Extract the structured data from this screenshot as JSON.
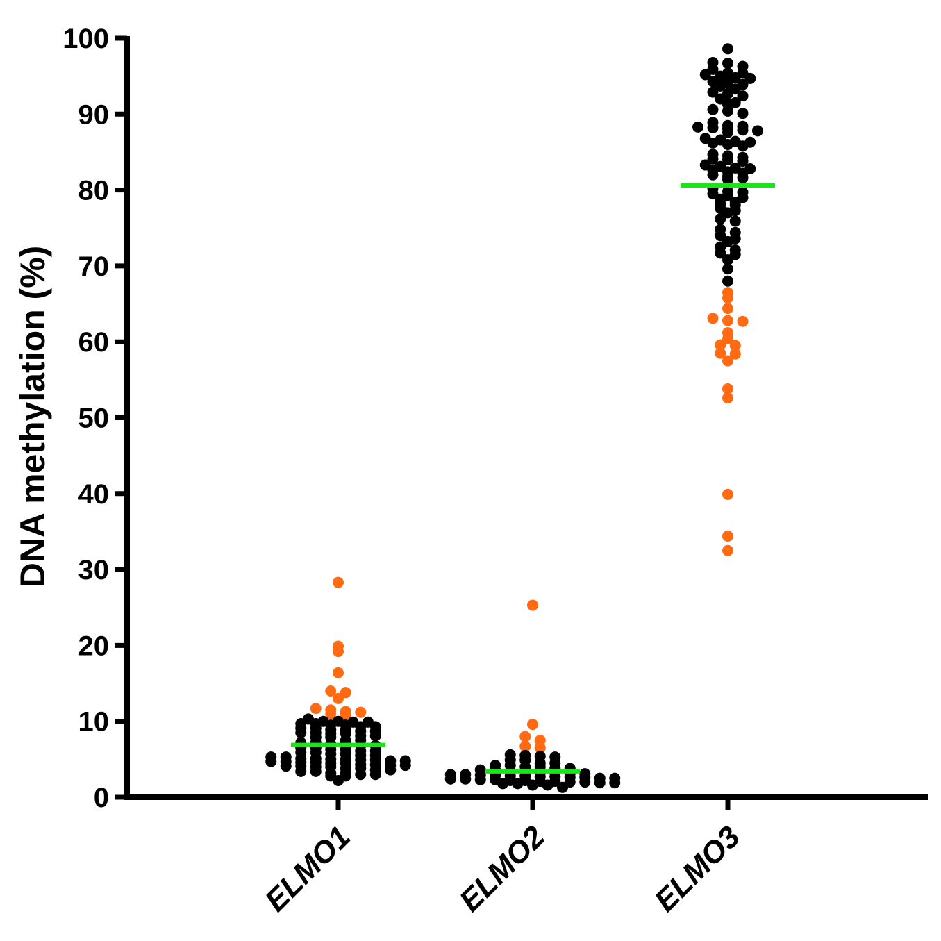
{
  "chart_data": {
    "type": "scatter",
    "title": "",
    "xlabel": "",
    "ylabel": "DNA methylation (%)",
    "ylim": [
      0,
      100
    ],
    "yticks": [
      0,
      10,
      20,
      30,
      40,
      50,
      60,
      70,
      80,
      90,
      100
    ],
    "categories": [
      "ELMO1",
      "ELMO2",
      "ELMO3"
    ],
    "colors": {
      "black": "#000000",
      "orange": "#ff6a13",
      "median": "#19e619"
    },
    "series": [
      {
        "name": "ELMO1",
        "median": 6.9,
        "points": [
          {
            "y": 28.3,
            "c": "orange"
          },
          {
            "y": 19.9,
            "c": "orange"
          },
          {
            "y": 19.2,
            "c": "orange"
          },
          {
            "y": 16.4,
            "c": "orange"
          },
          {
            "y": 14.0,
            "c": "orange"
          },
          {
            "y": 13.8,
            "c": "orange"
          },
          {
            "y": 13.0,
            "c": "orange"
          },
          {
            "y": 11.7,
            "c": "orange"
          },
          {
            "y": 11.5,
            "c": "orange"
          },
          {
            "y": 11.3,
            "c": "orange"
          },
          {
            "y": 11.2,
            "c": "orange"
          },
          {
            "y": 11.0,
            "c": "orange"
          },
          {
            "y": 10.9,
            "c": "orange"
          },
          {
            "y": 10.3,
            "c": "black"
          },
          {
            "y": 10.0,
            "c": "black"
          },
          {
            "y": 10.0,
            "c": "black"
          },
          {
            "y": 9.9,
            "c": "black"
          },
          {
            "y": 9.9,
            "c": "black"
          },
          {
            "y": 9.7,
            "c": "black"
          },
          {
            "y": 9.7,
            "c": "black"
          },
          {
            "y": 9.5,
            "c": "black"
          },
          {
            "y": 9.5,
            "c": "black"
          },
          {
            "y": 9.3,
            "c": "black"
          },
          {
            "y": 9.3,
            "c": "black"
          },
          {
            "y": 9.1,
            "c": "black"
          },
          {
            "y": 9.1,
            "c": "black"
          },
          {
            "y": 8.9,
            "c": "black"
          },
          {
            "y": 8.9,
            "c": "black"
          },
          {
            "y": 8.7,
            "c": "black"
          },
          {
            "y": 8.7,
            "c": "black"
          },
          {
            "y": 8.5,
            "c": "black"
          },
          {
            "y": 8.5,
            "c": "black"
          },
          {
            "y": 8.4,
            "c": "black"
          },
          {
            "y": 8.4,
            "c": "black"
          },
          {
            "y": 8.1,
            "c": "black"
          },
          {
            "y": 8.1,
            "c": "black"
          },
          {
            "y": 7.9,
            "c": "black"
          },
          {
            "y": 7.9,
            "c": "black"
          },
          {
            "y": 7.5,
            "c": "black"
          },
          {
            "y": 7.5,
            "c": "black"
          },
          {
            "y": 7.2,
            "c": "black"
          },
          {
            "y": 7.2,
            "c": "black"
          },
          {
            "y": 7.0,
            "c": "black"
          },
          {
            "y": 7.0,
            "c": "black"
          },
          {
            "y": 6.8,
            "c": "black"
          },
          {
            "y": 6.8,
            "c": "black"
          },
          {
            "y": 6.5,
            "c": "black"
          },
          {
            "y": 6.5,
            "c": "black"
          },
          {
            "y": 6.3,
            "c": "black"
          },
          {
            "y": 6.3,
            "c": "black"
          },
          {
            "y": 6.1,
            "c": "black"
          },
          {
            "y": 6.1,
            "c": "black"
          },
          {
            "y": 5.9,
            "c": "black"
          },
          {
            "y": 5.9,
            "c": "black"
          },
          {
            "y": 5.7,
            "c": "black"
          },
          {
            "y": 5.7,
            "c": "black"
          },
          {
            "y": 5.5,
            "c": "black"
          },
          {
            "y": 5.5,
            "c": "black"
          },
          {
            "y": 5.3,
            "c": "black"
          },
          {
            "y": 5.3,
            "c": "black"
          },
          {
            "y": 5.1,
            "c": "black"
          },
          {
            "y": 5.1,
            "c": "black"
          },
          {
            "y": 5.0,
            "c": "black"
          },
          {
            "y": 5.0,
            "c": "black"
          },
          {
            "y": 4.9,
            "c": "black"
          },
          {
            "y": 4.9,
            "c": "black"
          },
          {
            "y": 4.8,
            "c": "black"
          },
          {
            "y": 4.8,
            "c": "black"
          },
          {
            "y": 4.7,
            "c": "black"
          },
          {
            "y": 4.7,
            "c": "black"
          },
          {
            "y": 4.6,
            "c": "black"
          },
          {
            "y": 4.6,
            "c": "black"
          },
          {
            "y": 4.5,
            "c": "black"
          },
          {
            "y": 4.5,
            "c": "black"
          },
          {
            "y": 4.3,
            "c": "black"
          },
          {
            "y": 4.3,
            "c": "black"
          },
          {
            "y": 4.2,
            "c": "black"
          },
          {
            "y": 4.2,
            "c": "black"
          },
          {
            "y": 4.1,
            "c": "black"
          },
          {
            "y": 4.1,
            "c": "black"
          },
          {
            "y": 4.0,
            "c": "black"
          },
          {
            "y": 4.0,
            "c": "black"
          },
          {
            "y": 3.8,
            "c": "black"
          },
          {
            "y": 3.8,
            "c": "black"
          },
          {
            "y": 3.6,
            "c": "black"
          },
          {
            "y": 3.6,
            "c": "black"
          },
          {
            "y": 3.4,
            "c": "black"
          },
          {
            "y": 3.4,
            "c": "black"
          },
          {
            "y": 3.2,
            "c": "black"
          },
          {
            "y": 3.2,
            "c": "black"
          },
          {
            "y": 3.0,
            "c": "black"
          },
          {
            "y": 3.0,
            "c": "black"
          },
          {
            "y": 2.8,
            "c": "black"
          },
          {
            "y": 2.8,
            "c": "black"
          },
          {
            "y": 2.2,
            "c": "black"
          }
        ]
      },
      {
        "name": "ELMO2",
        "median": 3.4,
        "points": [
          {
            "y": 25.3,
            "c": "orange"
          },
          {
            "y": 9.6,
            "c": "orange"
          },
          {
            "y": 8.0,
            "c": "orange"
          },
          {
            "y": 7.5,
            "c": "orange"
          },
          {
            "y": 6.7,
            "c": "orange"
          },
          {
            "y": 6.5,
            "c": "orange"
          },
          {
            "y": 5.6,
            "c": "black"
          },
          {
            "y": 5.5,
            "c": "black"
          },
          {
            "y": 5.4,
            "c": "black"
          },
          {
            "y": 5.3,
            "c": "black"
          },
          {
            "y": 4.9,
            "c": "black"
          },
          {
            "y": 4.9,
            "c": "black"
          },
          {
            "y": 4.5,
            "c": "black"
          },
          {
            "y": 4.5,
            "c": "black"
          },
          {
            "y": 4.2,
            "c": "black"
          },
          {
            "y": 4.2,
            "c": "black"
          },
          {
            "y": 4.0,
            "c": "black"
          },
          {
            "y": 4.0,
            "c": "black"
          },
          {
            "y": 3.8,
            "c": "black"
          },
          {
            "y": 3.8,
            "c": "black"
          },
          {
            "y": 3.6,
            "c": "black"
          },
          {
            "y": 3.6,
            "c": "black"
          },
          {
            "y": 3.4,
            "c": "black"
          },
          {
            "y": 3.4,
            "c": "black"
          },
          {
            "y": 3.2,
            "c": "black"
          },
          {
            "y": 3.2,
            "c": "black"
          },
          {
            "y": 3.1,
            "c": "black"
          },
          {
            "y": 3.1,
            "c": "black"
          },
          {
            "y": 3.0,
            "c": "black"
          },
          {
            "y": 3.0,
            "c": "black"
          },
          {
            "y": 2.9,
            "c": "black"
          },
          {
            "y": 2.9,
            "c": "black"
          },
          {
            "y": 2.8,
            "c": "black"
          },
          {
            "y": 2.8,
            "c": "black"
          },
          {
            "y": 2.7,
            "c": "black"
          },
          {
            "y": 2.7,
            "c": "black"
          },
          {
            "y": 2.6,
            "c": "black"
          },
          {
            "y": 2.6,
            "c": "black"
          },
          {
            "y": 2.5,
            "c": "black"
          },
          {
            "y": 2.5,
            "c": "black"
          },
          {
            "y": 2.4,
            "c": "black"
          },
          {
            "y": 2.4,
            "c": "black"
          },
          {
            "y": 2.3,
            "c": "black"
          },
          {
            "y": 2.3,
            "c": "black"
          },
          {
            "y": 2.2,
            "c": "black"
          },
          {
            "y": 2.2,
            "c": "black"
          },
          {
            "y": 2.1,
            "c": "black"
          },
          {
            "y": 2.1,
            "c": "black"
          },
          {
            "y": 2.0,
            "c": "black"
          },
          {
            "y": 2.0,
            "c": "black"
          },
          {
            "y": 1.9,
            "c": "black"
          },
          {
            "y": 1.9,
            "c": "black"
          },
          {
            "y": 1.8,
            "c": "black"
          },
          {
            "y": 1.8,
            "c": "black"
          },
          {
            "y": 1.6,
            "c": "black"
          },
          {
            "y": 1.6,
            "c": "black"
          },
          {
            "y": 1.3,
            "c": "black"
          }
        ]
      },
      {
        "name": "ELMO3",
        "median": 80.6,
        "points": [
          {
            "y": 98.6,
            "c": "black"
          },
          {
            "y": 96.8,
            "c": "black"
          },
          {
            "y": 96.7,
            "c": "black"
          },
          {
            "y": 96.3,
            "c": "black"
          },
          {
            "y": 95.9,
            "c": "black"
          },
          {
            "y": 95.4,
            "c": "black"
          },
          {
            "y": 95.4,
            "c": "black"
          },
          {
            "y": 95.2,
            "c": "black"
          },
          {
            "y": 95.0,
            "c": "black"
          },
          {
            "y": 94.8,
            "c": "black"
          },
          {
            "y": 94.7,
            "c": "black"
          },
          {
            "y": 94.3,
            "c": "black"
          },
          {
            "y": 94.1,
            "c": "black"
          },
          {
            "y": 93.9,
            "c": "black"
          },
          {
            "y": 93.7,
            "c": "black"
          },
          {
            "y": 93.3,
            "c": "black"
          },
          {
            "y": 92.9,
            "c": "black"
          },
          {
            "y": 92.7,
            "c": "black"
          },
          {
            "y": 92.4,
            "c": "black"
          },
          {
            "y": 92.0,
            "c": "black"
          },
          {
            "y": 91.5,
            "c": "black"
          },
          {
            "y": 91.3,
            "c": "black"
          },
          {
            "y": 90.6,
            "c": "black"
          },
          {
            "y": 90.4,
            "c": "black"
          },
          {
            "y": 90.1,
            "c": "black"
          },
          {
            "y": 88.9,
            "c": "black"
          },
          {
            "y": 88.5,
            "c": "black"
          },
          {
            "y": 88.4,
            "c": "black"
          },
          {
            "y": 88.3,
            "c": "black"
          },
          {
            "y": 88.2,
            "c": "black"
          },
          {
            "y": 88.1,
            "c": "black"
          },
          {
            "y": 87.9,
            "c": "black"
          },
          {
            "y": 87.8,
            "c": "black"
          },
          {
            "y": 87.6,
            "c": "black"
          },
          {
            "y": 86.8,
            "c": "black"
          },
          {
            "y": 86.6,
            "c": "black"
          },
          {
            "y": 86.4,
            "c": "black"
          },
          {
            "y": 86.3,
            "c": "black"
          },
          {
            "y": 86.2,
            "c": "black"
          },
          {
            "y": 86.0,
            "c": "black"
          },
          {
            "y": 85.8,
            "c": "black"
          },
          {
            "y": 84.7,
            "c": "black"
          },
          {
            "y": 84.5,
            "c": "black"
          },
          {
            "y": 84.3,
            "c": "black"
          },
          {
            "y": 84.1,
            "c": "black"
          },
          {
            "y": 84.0,
            "c": "black"
          },
          {
            "y": 83.8,
            "c": "black"
          },
          {
            "y": 83.3,
            "c": "black"
          },
          {
            "y": 83.1,
            "c": "black"
          },
          {
            "y": 82.9,
            "c": "black"
          },
          {
            "y": 82.8,
            "c": "black"
          },
          {
            "y": 82.6,
            "c": "black"
          },
          {
            "y": 82.4,
            "c": "black"
          },
          {
            "y": 82.2,
            "c": "black"
          },
          {
            "y": 82.0,
            "c": "black"
          },
          {
            "y": 81.8,
            "c": "black"
          },
          {
            "y": 81.6,
            "c": "black"
          },
          {
            "y": 81.4,
            "c": "black"
          },
          {
            "y": 80.2,
            "c": "black"
          },
          {
            "y": 79.8,
            "c": "black"
          },
          {
            "y": 79.7,
            "c": "black"
          },
          {
            "y": 79.5,
            "c": "black"
          },
          {
            "y": 79.3,
            "c": "black"
          },
          {
            "y": 79.0,
            "c": "black"
          },
          {
            "y": 78.8,
            "c": "black"
          },
          {
            "y": 78.4,
            "c": "black"
          },
          {
            "y": 78.2,
            "c": "black"
          },
          {
            "y": 78.0,
            "c": "black"
          },
          {
            "y": 77.6,
            "c": "black"
          },
          {
            "y": 77.3,
            "c": "black"
          },
          {
            "y": 77.0,
            "c": "black"
          },
          {
            "y": 76.2,
            "c": "black"
          },
          {
            "y": 75.9,
            "c": "black"
          },
          {
            "y": 74.8,
            "c": "black"
          },
          {
            "y": 74.4,
            "c": "black"
          },
          {
            "y": 74.0,
            "c": "black"
          },
          {
            "y": 73.6,
            "c": "black"
          },
          {
            "y": 73.2,
            "c": "black"
          },
          {
            "y": 72.5,
            "c": "black"
          },
          {
            "y": 72.1,
            "c": "black"
          },
          {
            "y": 71.7,
            "c": "black"
          },
          {
            "y": 71.5,
            "c": "black"
          },
          {
            "y": 70.8,
            "c": "black"
          },
          {
            "y": 69.6,
            "c": "black"
          },
          {
            "y": 68.0,
            "c": "black"
          },
          {
            "y": 66.5,
            "c": "orange"
          },
          {
            "y": 65.8,
            "c": "orange"
          },
          {
            "y": 64.4,
            "c": "orange"
          },
          {
            "y": 63.1,
            "c": "orange"
          },
          {
            "y": 62.8,
            "c": "orange"
          },
          {
            "y": 62.7,
            "c": "orange"
          },
          {
            "y": 61.2,
            "c": "orange"
          },
          {
            "y": 60.4,
            "c": "orange"
          },
          {
            "y": 59.6,
            "c": "orange"
          },
          {
            "y": 59.5,
            "c": "orange"
          },
          {
            "y": 58.5,
            "c": "orange"
          },
          {
            "y": 58.4,
            "c": "orange"
          },
          {
            "y": 57.5,
            "c": "orange"
          },
          {
            "y": 53.8,
            "c": "orange"
          },
          {
            "y": 52.6,
            "c": "orange"
          },
          {
            "y": 39.9,
            "c": "orange"
          },
          {
            "y": 34.4,
            "c": "orange"
          },
          {
            "y": 32.5,
            "c": "orange"
          }
        ]
      }
    ]
  }
}
